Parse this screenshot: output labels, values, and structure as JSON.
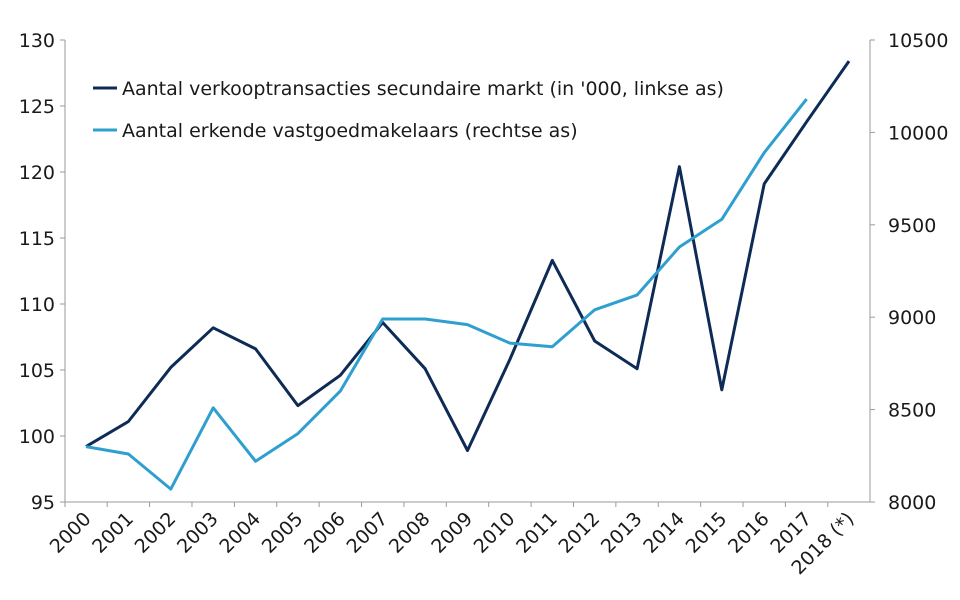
{
  "chart_data": {
    "type": "line",
    "title": "",
    "xlabel": "",
    "ylabel": "",
    "categories": [
      "2000",
      "2001",
      "2002",
      "2003",
      "2004",
      "2005",
      "2006",
      "2007",
      "2008",
      "2009",
      "2010",
      "2011",
      "2012",
      "2013",
      "2014",
      "2015",
      "2016",
      "2017",
      "2018 (*)"
    ],
    "y_left": {
      "ylim": [
        95,
        130
      ],
      "ticks": [
        95,
        100,
        105,
        110,
        115,
        120,
        125,
        130
      ]
    },
    "y_right": {
      "ylim": [
        8000,
        10500
      ],
      "ticks": [
        8000,
        8500,
        9000,
        9500,
        10000,
        10500
      ]
    },
    "legend_position": "top-left",
    "grid": false,
    "series": [
      {
        "name": "Aantal verkooptransacties secundaire markt (in '000, linkse as)",
        "axis": "left",
        "color": "#0d2b55",
        "values": [
          99.2,
          101.1,
          105.2,
          108.2,
          106.6,
          102.3,
          104.6,
          108.6,
          105.1,
          98.9,
          105.8,
          113.3,
          107.2,
          105.1,
          120.4,
          103.5,
          119.1,
          123.8,
          128.4
        ]
      },
      {
        "name": "Aantal erkende vastgoedmakelaars (rechtse as)",
        "axis": "right",
        "color": "#2f9fd0",
        "values": [
          8300,
          8260,
          8070,
          8510,
          8220,
          8370,
          8600,
          8990,
          8990,
          8960,
          8860,
          8840,
          9040,
          9120,
          9380,
          9530,
          9890,
          10180,
          null
        ]
      }
    ]
  }
}
